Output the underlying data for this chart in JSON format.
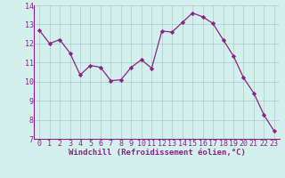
{
  "x": [
    0,
    1,
    2,
    3,
    4,
    5,
    6,
    7,
    8,
    9,
    10,
    11,
    12,
    13,
    14,
    15,
    16,
    17,
    18,
    19,
    20,
    21,
    22,
    23
  ],
  "y": [
    12.7,
    12.0,
    12.2,
    11.5,
    10.35,
    10.85,
    10.75,
    10.05,
    10.1,
    10.75,
    11.15,
    10.7,
    12.65,
    12.6,
    13.1,
    13.6,
    13.4,
    13.05,
    12.2,
    11.35,
    10.2,
    9.4,
    8.25,
    7.4
  ],
  "line_color": "#882288",
  "marker_color": "#882288",
  "bg_color": "#d4f0ec",
  "grid_color": "#aacccc",
  "xlabel": "Windchill (Refroidissement éolien,°C)",
  "xlim": [
    -0.5,
    23.5
  ],
  "ylim": [
    7,
    14
  ],
  "yticks": [
    7,
    8,
    9,
    10,
    11,
    12,
    13,
    14
  ],
  "xticks": [
    0,
    1,
    2,
    3,
    4,
    5,
    6,
    7,
    8,
    9,
    10,
    11,
    12,
    13,
    14,
    15,
    16,
    17,
    18,
    19,
    20,
    21,
    22,
    23
  ],
  "tick_fontsize": 6.0,
  "xlabel_fontsize": 6.5,
  "line_width": 0.9,
  "marker_size": 2.2
}
